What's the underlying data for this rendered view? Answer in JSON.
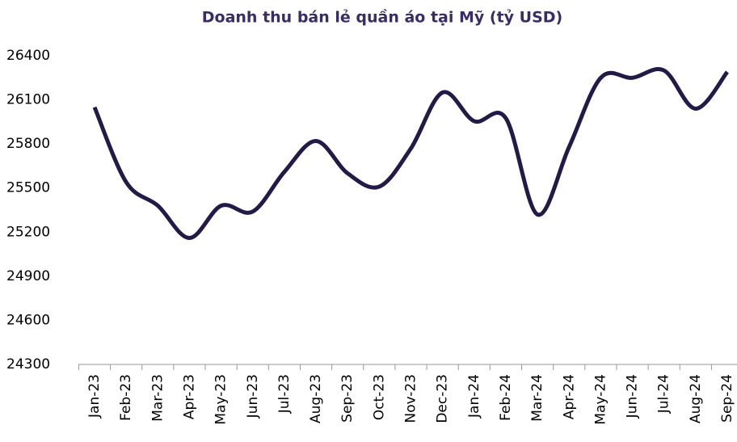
{
  "chart_data": {
    "type": "line",
    "title": "Doanh thu bán lẻ quần áo tại Mỹ (tỷ USD)",
    "categories": [
      "Jan-23",
      "Feb-23",
      "Mar-23",
      "Apr-23",
      "May-23",
      "Jun-23",
      "Jul-23",
      "Aug-23",
      "Sep-23",
      "Oct-23",
      "Nov-23",
      "Dec-23",
      "Jan-24",
      "Feb-24",
      "Mar-24",
      "Apr-24",
      "May-24",
      "Jun-24",
      "Jul-24",
      "Aug-24",
      "Sep-24"
    ],
    "series": [
      {
        "name": "Doanh thu",
        "color": "#241a47",
        "values": [
          26050,
          25540,
          25380,
          25160,
          25380,
          25340,
          25610,
          25820,
          25600,
          25510,
          25770,
          26150,
          25955,
          25975,
          25320,
          25780,
          26250,
          26250,
          26300,
          26040,
          26290
        ]
      }
    ],
    "ylim": [
      24300,
      26400
    ],
    "yticks": [
      24300,
      24600,
      24900,
      25200,
      25500,
      25800,
      26100,
      26400
    ],
    "smooth": true
  }
}
